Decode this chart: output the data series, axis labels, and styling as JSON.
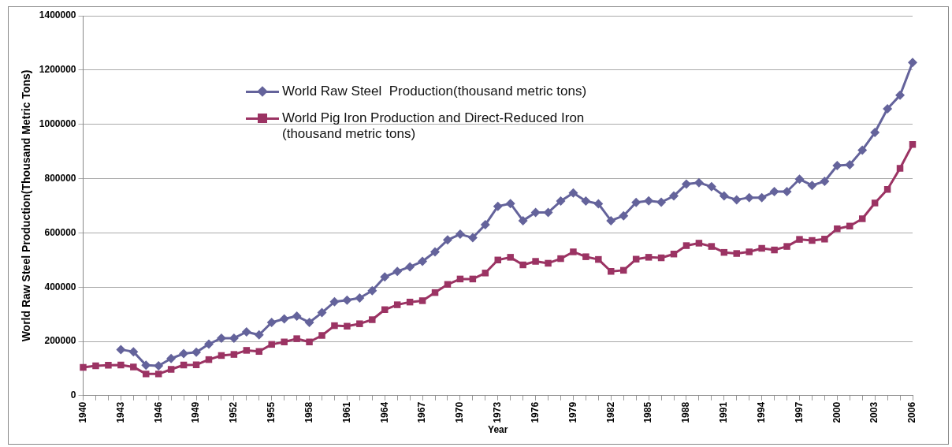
{
  "chart_data": {
    "type": "line",
    "xlabel": "Year",
    "ylabel": "World Raw Steel Production(Thousand Metric Tons)",
    "categories": [
      "1940",
      null,
      null,
      "1943",
      null,
      null,
      "1946",
      null,
      null,
      "1949",
      null,
      null,
      "1952",
      null,
      null,
      "1955",
      null,
      null,
      "1958",
      null,
      null,
      "1961",
      null,
      null,
      "1964",
      null,
      null,
      "1967",
      null,
      null,
      "1970",
      null,
      null,
      "1973",
      null,
      null,
      "1976",
      null,
      null,
      "1979",
      null,
      null,
      "1982",
      null,
      null,
      "1985",
      null,
      null,
      "1988",
      null,
      null,
      "1991",
      null,
      null,
      "1994",
      null,
      null,
      "1997",
      null,
      null,
      "2000",
      null,
      null,
      "2003",
      null,
      null,
      "2006"
    ],
    "series": [
      {
        "name": "World Raw Steel  Production(thousand metric tons)",
        "color": "#64639b",
        "marker": "diamond",
        "values": [
          null,
          null,
          null,
          170000,
          162000,
          112000,
          110000,
          137000,
          155000,
          160000,
          190000,
          212000,
          212000,
          235000,
          224000,
          270000,
          283000,
          293000,
          270000,
          306000,
          346000,
          352000,
          360000,
          387000,
          438000,
          458000,
          475000,
          495000,
          530000,
          574000,
          595000,
          582000,
          630000,
          698000,
          708000,
          645000,
          675000,
          675000,
          717000,
          747000,
          717000,
          707000,
          645000,
          663000,
          712000,
          718000,
          713000,
          736000,
          780000,
          785000,
          770000,
          736000,
          722000,
          730000,
          730000,
          752000,
          752000,
          798000,
          775000,
          790000,
          848000,
          851000,
          905000,
          970000,
          1057000,
          1107000,
          1228000
        ]
      },
      {
        "name": "World Pig Iron Production and Direct-Reduced Iron (thousand metric tons)",
        "color": "#9b3363",
        "marker": "square",
        "values": [
          104000,
          110000,
          112000,
          113000,
          106000,
          80000,
          80000,
          97000,
          113000,
          114000,
          133000,
          148000,
          152000,
          167000,
          163000,
          189000,
          198000,
          210000,
          198000,
          222000,
          258000,
          256000,
          265000,
          280000,
          317000,
          335000,
          345000,
          350000,
          380000,
          410000,
          430000,
          430000,
          452000,
          500000,
          510000,
          482000,
          495000,
          488000,
          505000,
          530000,
          512000,
          502000,
          458000,
          462000,
          503000,
          510000,
          508000,
          522000,
          553000,
          562000,
          550000,
          528000,
          524000,
          530000,
          543000,
          537000,
          550000,
          576000,
          572000,
          577000,
          615000,
          625000,
          652000,
          710000,
          760000,
          838000,
          926000
        ]
      }
    ],
    "ylim": [
      0,
      1400000
    ],
    "yticks": [
      0,
      200000,
      400000,
      600000,
      800000,
      1000000,
      1200000,
      1400000
    ],
    "grid": "y",
    "legend": "top left",
    "line_style": "solid"
  }
}
